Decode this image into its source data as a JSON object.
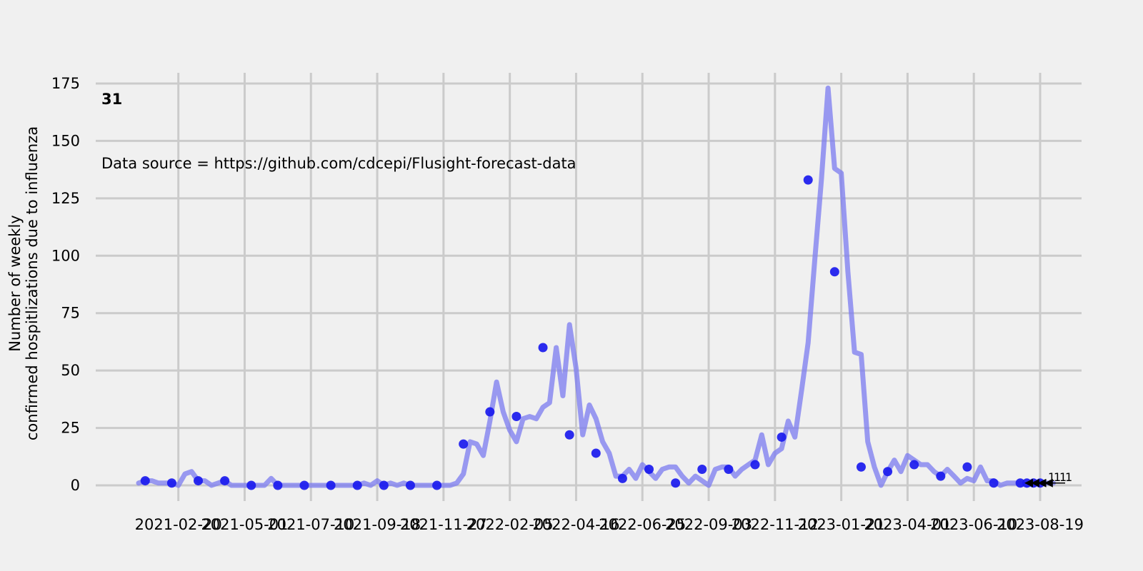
{
  "chart_data": {
    "type": "line",
    "panel_label": "31",
    "source_text": "Data source = https://github.com/cdcepi/Flusight-forecast-data",
    "ylabel_line1": "Number of weekly",
    "ylabel_line2": "confirmed hospitlizations due to influenza",
    "xlabel": "",
    "ylim": [
      0,
      175
    ],
    "yticks": [
      0,
      25,
      50,
      75,
      100,
      125,
      150,
      175
    ],
    "x_date_ticks": [
      "2021-02-20",
      "2021-05-01",
      "2021-07-10",
      "2021-09-18",
      "2021-11-27",
      "2022-02-05",
      "2022-04-16",
      "2022-06-25",
      "2022-09-03",
      "2022-11-12",
      "2023-01-21",
      "2023-04-01",
      "2023-06-10",
      "2023-08-19"
    ],
    "x_start": "2021-01-09",
    "x_end": "2023-09-09",
    "grid": true,
    "colors": {
      "line": "#7b7bf0",
      "points": "#1a1aee",
      "grid": "#cbcbcb",
      "background": "#f0f0f0"
    },
    "series": [
      {
        "name": "",
        "values": [
          1,
          2,
          2,
          1,
          1,
          1,
          0,
          5,
          6,
          2,
          2,
          0,
          1,
          2,
          0,
          0,
          0,
          0,
          0,
          0,
          3,
          0,
          0,
          0,
          0,
          0,
          0,
          0,
          0,
          0,
          0,
          0,
          0,
          0,
          1,
          0,
          2,
          0,
          1,
          0,
          1,
          0,
          0,
          0,
          0,
          0,
          0,
          0,
          1,
          5,
          19,
          18,
          13,
          28,
          45,
          32,
          24,
          19,
          29,
          30,
          29,
          34,
          36,
          60,
          39,
          70,
          51,
          22,
          35,
          29,
          19,
          14,
          4,
          4,
          7,
          3,
          9,
          6,
          3,
          7,
          8,
          8,
          4,
          1,
          4,
          2,
          0,
          7,
          8,
          8,
          4,
          7,
          9,
          11,
          22,
          9,
          14,
          16,
          28,
          21,
          41,
          62,
          98,
          133,
          173,
          138,
          136,
          93,
          58,
          57,
          19,
          8,
          0,
          6,
          11,
          6,
          13,
          11,
          9,
          9,
          6,
          4,
          7,
          4,
          1,
          3,
          2,
          8,
          2,
          2,
          0,
          1,
          1,
          1,
          0,
          1,
          1,
          1,
          1
        ]
      }
    ],
    "observed_points": [
      {
        "date": "2021-01-16",
        "y": 2
      },
      {
        "date": "2021-02-13",
        "y": 1
      },
      {
        "date": "2021-03-13",
        "y": 2
      },
      {
        "date": "2021-04-10",
        "y": 2
      },
      {
        "date": "2021-05-08",
        "y": 0
      },
      {
        "date": "2021-06-05",
        "y": 0
      },
      {
        "date": "2021-07-03",
        "y": 0
      },
      {
        "date": "2021-07-31",
        "y": 0
      },
      {
        "date": "2021-08-28",
        "y": 0
      },
      {
        "date": "2021-09-25",
        "y": 0
      },
      {
        "date": "2021-10-23",
        "y": 0
      },
      {
        "date": "2021-11-20",
        "y": 0
      },
      {
        "date": "2021-12-18",
        "y": 18
      },
      {
        "date": "2022-01-15",
        "y": 32
      },
      {
        "date": "2022-02-12",
        "y": 30
      },
      {
        "date": "2022-03-12",
        "y": 60
      },
      {
        "date": "2022-04-09",
        "y": 22
      },
      {
        "date": "2022-05-07",
        "y": 14
      },
      {
        "date": "2022-06-04",
        "y": 3
      },
      {
        "date": "2022-07-02",
        "y": 7
      },
      {
        "date": "2022-07-30",
        "y": 1
      },
      {
        "date": "2022-08-27",
        "y": 7
      },
      {
        "date": "2022-09-24",
        "y": 7
      },
      {
        "date": "2022-10-22",
        "y": 9
      },
      {
        "date": "2022-11-19",
        "y": 21
      },
      {
        "date": "2022-12-17",
        "y": 133
      },
      {
        "date": "2023-01-14",
        "y": 93
      },
      {
        "date": "2023-02-11",
        "y": 8
      },
      {
        "date": "2023-03-11",
        "y": 6
      },
      {
        "date": "2023-04-08",
        "y": 9
      },
      {
        "date": "2023-05-06",
        "y": 4
      },
      {
        "date": "2023-06-03",
        "y": 8
      },
      {
        "date": "2023-07-01",
        "y": 1
      },
      {
        "date": "2023-07-29",
        "y": 1
      },
      {
        "date": "2023-08-05",
        "y": 1
      },
      {
        "date": "2023-08-12",
        "y": 1
      },
      {
        "date": "2023-08-19",
        "y": 1
      }
    ],
    "annotations": [
      {
        "date": "2023-07-29",
        "y": 1,
        "text": "1"
      },
      {
        "date": "2023-08-05",
        "y": 1,
        "text": "1"
      },
      {
        "date": "2023-08-12",
        "y": 1,
        "text": "1"
      },
      {
        "date": "2023-08-19",
        "y": 1,
        "text": "1"
      }
    ]
  }
}
